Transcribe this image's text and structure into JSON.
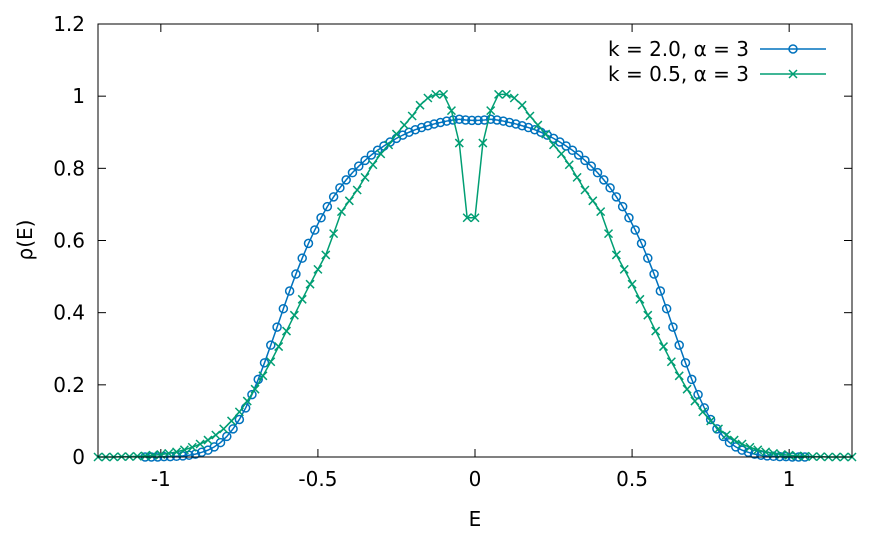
{
  "chart_data": {
    "type": "line",
    "title": "",
    "xlabel": "E",
    "ylabel": "ρ(E)",
    "xlim": [
      -1.2,
      1.2
    ],
    "ylim": [
      0,
      1.2
    ],
    "xticks": [
      -1,
      -0.5,
      0,
      0.5,
      1
    ],
    "xtick_labels": [
      "-1",
      "-0.5",
      "0",
      "0.5",
      "1"
    ],
    "yticks": [
      0,
      0.2,
      0.4,
      0.6,
      0.8,
      1,
      1.2
    ],
    "ytick_labels": [
      "0",
      "0.2",
      "0.4",
      "0.6",
      "0.8",
      "1",
      "1.2"
    ],
    "grid": false,
    "legend_position": "top-right",
    "series": [
      {
        "name": "k = 2.0, α = 3",
        "color": "#0072bd",
        "marker": "circle",
        "x": [
          -1.05,
          -1.03,
          -1.01,
          -0.99,
          -0.97,
          -0.95,
          -0.93,
          -0.91,
          -0.89,
          -0.87,
          -0.85,
          -0.83,
          -0.81,
          -0.79,
          -0.77,
          -0.75,
          -0.73,
          -0.71,
          -0.69,
          -0.67,
          -0.65,
          -0.63,
          -0.61,
          -0.59,
          -0.57,
          -0.55,
          -0.53,
          -0.51,
          -0.49,
          -0.47,
          -0.45,
          -0.43,
          -0.41,
          -0.39,
          -0.37,
          -0.35,
          -0.33,
          -0.31,
          -0.29,
          -0.27,
          -0.25,
          -0.23,
          -0.21,
          -0.19,
          -0.17,
          -0.15,
          -0.13,
          -0.11,
          -0.09,
          -0.07,
          -0.05,
          -0.03,
          -0.01,
          0.01,
          0.03,
          0.05,
          0.07,
          0.09,
          0.11,
          0.13,
          0.15,
          0.17,
          0.19,
          0.21,
          0.23,
          0.25,
          0.27,
          0.29,
          0.31,
          0.33,
          0.35,
          0.37,
          0.39,
          0.41,
          0.43,
          0.45,
          0.47,
          0.49,
          0.51,
          0.53,
          0.55,
          0.57,
          0.59,
          0.61,
          0.63,
          0.65,
          0.67,
          0.69,
          0.71,
          0.73,
          0.75,
          0.77,
          0.79,
          0.81,
          0.83,
          0.85,
          0.87,
          0.89,
          0.91,
          0.93,
          0.95,
          0.97,
          0.99,
          1.01,
          1.03,
          1.05
        ],
        "y": [
          0.0,
          0.0,
          0.0,
          0.001,
          0.001,
          0.002,
          0.003,
          0.005,
          0.008,
          0.013,
          0.019,
          0.028,
          0.04,
          0.057,
          0.078,
          0.104,
          0.136,
          0.173,
          0.215,
          0.261,
          0.31,
          0.36,
          0.411,
          0.46,
          0.507,
          0.551,
          0.592,
          0.629,
          0.663,
          0.694,
          0.721,
          0.746,
          0.768,
          0.788,
          0.806,
          0.822,
          0.837,
          0.85,
          0.862,
          0.873,
          0.883,
          0.892,
          0.9,
          0.907,
          0.913,
          0.918,
          0.923,
          0.927,
          0.931,
          0.934,
          0.936,
          0.934,
          0.933,
          0.933,
          0.934,
          0.936,
          0.934,
          0.931,
          0.927,
          0.923,
          0.918,
          0.913,
          0.907,
          0.9,
          0.892,
          0.883,
          0.873,
          0.862,
          0.85,
          0.837,
          0.822,
          0.806,
          0.788,
          0.768,
          0.746,
          0.721,
          0.694,
          0.663,
          0.629,
          0.592,
          0.551,
          0.507,
          0.46,
          0.411,
          0.36,
          0.31,
          0.261,
          0.215,
          0.173,
          0.136,
          0.104,
          0.078,
          0.057,
          0.04,
          0.028,
          0.019,
          0.013,
          0.008,
          0.005,
          0.003,
          0.002,
          0.001,
          0.001,
          0.0,
          0.0,
          0.0
        ]
      },
      {
        "name": "k = 0.5, α = 3",
        "color": "#009e73",
        "marker": "cross",
        "x": [
          -1.2,
          -1.175,
          -1.15,
          -1.125,
          -1.1,
          -1.075,
          -1.05,
          -1.025,
          -1.0,
          -0.975,
          -0.95,
          -0.925,
          -0.9,
          -0.875,
          -0.85,
          -0.825,
          -0.8,
          -0.775,
          -0.75,
          -0.725,
          -0.7,
          -0.675,
          -0.65,
          -0.625,
          -0.6,
          -0.575,
          -0.55,
          -0.525,
          -0.5,
          -0.475,
          -0.45,
          -0.425,
          -0.4,
          -0.375,
          -0.35,
          -0.325,
          -0.3,
          -0.275,
          -0.25,
          -0.225,
          -0.2,
          -0.175,
          -0.15,
          -0.125,
          -0.1,
          -0.075,
          -0.05,
          -0.025,
          0.0,
          0.025,
          0.05,
          0.075,
          0.1,
          0.125,
          0.15,
          0.175,
          0.2,
          0.225,
          0.25,
          0.275,
          0.3,
          0.325,
          0.35,
          0.375,
          0.4,
          0.425,
          0.45,
          0.475,
          0.5,
          0.525,
          0.55,
          0.575,
          0.6,
          0.625,
          0.65,
          0.675,
          0.7,
          0.725,
          0.75,
          0.775,
          0.8,
          0.825,
          0.85,
          0.875,
          0.9,
          0.925,
          0.95,
          0.975,
          1.0,
          1.025,
          1.05,
          1.075,
          1.1,
          1.125,
          1.15,
          1.175,
          1.2
        ],
        "y": [
          0.0,
          0.0,
          0.0,
          0.001,
          0.001,
          0.002,
          0.003,
          0.005,
          0.007,
          0.01,
          0.014,
          0.02,
          0.027,
          0.036,
          0.047,
          0.061,
          0.078,
          0.1,
          0.125,
          0.155,
          0.188,
          0.225,
          0.264,
          0.306,
          0.349,
          0.393,
          0.437,
          0.479,
          0.52,
          0.56,
          0.619,
          0.68,
          0.71,
          0.74,
          0.775,
          0.81,
          0.84,
          0.865,
          0.895,
          0.92,
          0.945,
          0.975,
          0.995,
          1.005,
          1.005,
          0.96,
          0.87,
          0.663,
          0.663,
          0.87,
          0.96,
          1.005,
          1.005,
          0.995,
          0.975,
          0.945,
          0.92,
          0.895,
          0.865,
          0.84,
          0.81,
          0.775,
          0.74,
          0.71,
          0.68,
          0.619,
          0.56,
          0.52,
          0.479,
          0.437,
          0.393,
          0.349,
          0.306,
          0.264,
          0.225,
          0.188,
          0.155,
          0.125,
          0.1,
          0.078,
          0.061,
          0.047,
          0.036,
          0.027,
          0.02,
          0.014,
          0.01,
          0.007,
          0.005,
          0.003,
          0.002,
          0.001,
          0.001,
          0.0,
          0.0,
          0.0,
          0.0
        ]
      }
    ]
  }
}
